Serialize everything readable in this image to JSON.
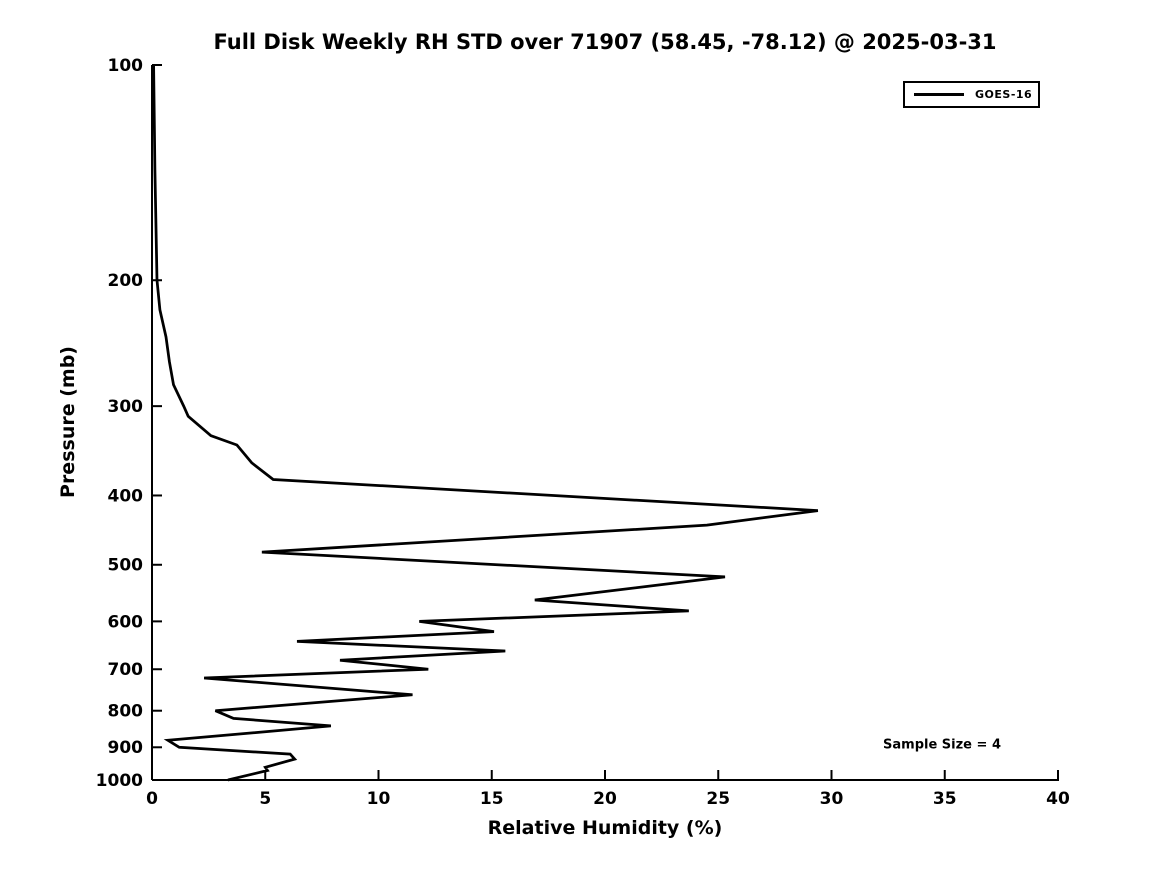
{
  "title": "Full Disk Weekly RH STD over 71907 (58.45, -78.12) @ 2025-03-31",
  "chart_data": {
    "type": "line",
    "title": "Full Disk Weekly RH STD over 71907 (58.45, -78.12) @ 2025-03-31",
    "xlabel": "Relative Humidity (%)",
    "ylabel": "Pressure (mb)",
    "xlim": [
      0,
      40
    ],
    "ylim": [
      100,
      1000
    ],
    "y_scale": "log",
    "y_inverted": true,
    "grid": false,
    "x_ticks": [
      0,
      5,
      10,
      15,
      20,
      25,
      30,
      35,
      40
    ],
    "y_ticks": [
      100,
      200,
      300,
      400,
      500,
      600,
      700,
      800,
      900,
      1000
    ],
    "legend_position": "upper right",
    "line_color": "#000000",
    "series": [
      {
        "name": "GOES-16",
        "color": "#000000",
        "points_format": "[pressure_mb, rh_std_percent]",
        "points": [
          [
            100,
            0.07
          ],
          [
            140,
            0.13
          ],
          [
            200,
            0.22
          ],
          [
            220,
            0.35
          ],
          [
            240,
            0.62
          ],
          [
            260,
            0.77
          ],
          [
            280,
            0.95
          ],
          [
            300,
            1.4
          ],
          [
            310,
            1.6
          ],
          [
            330,
            2.6
          ],
          [
            340,
            3.75
          ],
          [
            360,
            4.4
          ],
          [
            380,
            5.35
          ],
          [
            420,
            29.4
          ],
          [
            440,
            24.5
          ],
          [
            480,
            4.85
          ],
          [
            520,
            25.3
          ],
          [
            560,
            16.9
          ],
          [
            580,
            23.7
          ],
          [
            600,
            11.8
          ],
          [
            620,
            15.1
          ],
          [
            640,
            6.4
          ],
          [
            660,
            15.6
          ],
          [
            680,
            8.3
          ],
          [
            700,
            12.2
          ],
          [
            720,
            2.3
          ],
          [
            760,
            11.5
          ],
          [
            800,
            2.8
          ],
          [
            820,
            3.6
          ],
          [
            840,
            7.9
          ],
          [
            880,
            0.7
          ],
          [
            900,
            1.2
          ],
          [
            920,
            6.1
          ],
          [
            935,
            6.3
          ],
          [
            960,
            5.0
          ],
          [
            970,
            5.1
          ],
          [
            1000,
            3.35
          ]
        ]
      }
    ],
    "annotations": [
      {
        "text": "Sample Size = 4"
      }
    ]
  }
}
